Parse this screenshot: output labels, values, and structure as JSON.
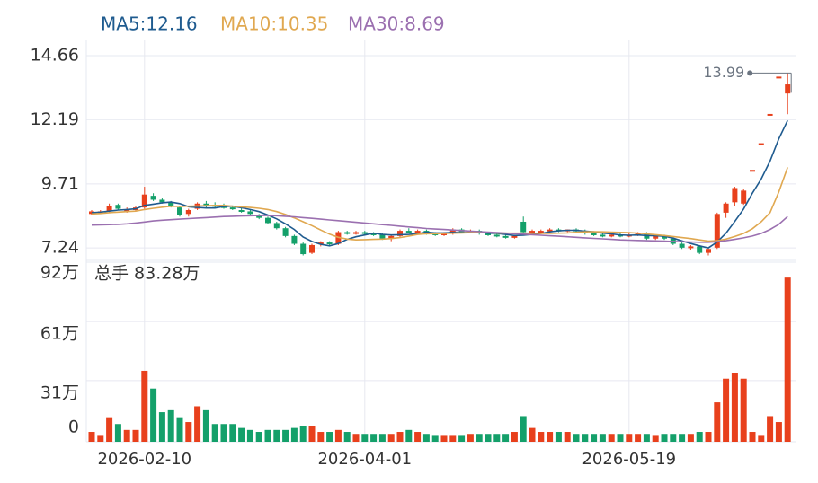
{
  "chart_data": {
    "type": "candlestick",
    "categories": [
      null,
      null,
      null,
      null,
      null,
      null,
      "2026-02-10",
      null,
      null,
      null,
      null,
      null,
      null,
      null,
      null,
      null,
      null,
      null,
      null,
      null,
      null,
      null,
      null,
      null,
      null,
      null,
      null,
      null,
      null,
      null,
      null,
      "2026-04-01",
      null,
      null,
      null,
      null,
      null,
      null,
      null,
      null,
      null,
      null,
      null,
      null,
      null,
      null,
      null,
      null,
      null,
      null,
      null,
      null,
      null,
      null,
      null,
      null,
      null,
      null,
      null,
      null,
      null,
      "2026-05-19",
      null,
      null,
      null,
      null,
      null,
      null,
      null,
      null,
      null,
      null,
      null,
      null,
      null,
      null,
      null,
      null,
      null,
      null
    ],
    "up_color": "#e8401c",
    "down_color": "#14a06a",
    "ylim": [
      6.69,
      15.25
    ],
    "yticks": [
      7.24,
      9.71,
      12.19,
      14.66
    ],
    "candles": [
      [
        8.55,
        8.7,
        8.5,
        8.65
      ],
      [
        8.6,
        8.7,
        8.55,
        8.65
      ],
      [
        8.65,
        8.95,
        8.6,
        8.85
      ],
      [
        8.9,
        8.95,
        8.7,
        8.75
      ],
      [
        8.7,
        8.8,
        8.6,
        8.7
      ],
      [
        8.7,
        8.85,
        8.65,
        8.8
      ],
      [
        8.8,
        9.6,
        8.75,
        9.3
      ],
      [
        9.25,
        9.35,
        9.05,
        9.1
      ],
      [
        9.1,
        9.15,
        8.95,
        9.0
      ],
      [
        9.0,
        9.05,
        8.8,
        8.85
      ],
      [
        8.8,
        8.85,
        8.45,
        8.5
      ],
      [
        8.55,
        8.75,
        8.45,
        8.7
      ],
      [
        8.75,
        9.0,
        8.7,
        8.95
      ],
      [
        8.95,
        9.05,
        8.8,
        8.9
      ],
      [
        8.9,
        9.0,
        8.8,
        8.85
      ],
      [
        8.85,
        8.95,
        8.75,
        8.8
      ],
      [
        8.8,
        8.85,
        8.7,
        8.75
      ],
      [
        8.7,
        8.8,
        8.6,
        8.65
      ],
      [
        8.65,
        8.7,
        8.5,
        8.55
      ],
      [
        8.5,
        8.55,
        8.35,
        8.4
      ],
      [
        8.4,
        8.45,
        8.15,
        8.2
      ],
      [
        8.2,
        8.25,
        7.95,
        8.0
      ],
      [
        8.0,
        8.05,
        7.65,
        7.7
      ],
      [
        7.7,
        7.75,
        7.35,
        7.4
      ],
      [
        7.4,
        7.45,
        6.95,
        7.0
      ],
      [
        7.05,
        7.4,
        7.0,
        7.35
      ],
      [
        7.4,
        7.5,
        7.3,
        7.45
      ],
      [
        7.45,
        7.5,
        7.35,
        7.4
      ],
      [
        7.4,
        7.9,
        7.35,
        7.85
      ],
      [
        7.85,
        7.9,
        7.75,
        7.8
      ],
      [
        7.8,
        7.9,
        7.75,
        7.85
      ],
      [
        7.85,
        7.9,
        7.75,
        7.8
      ],
      [
        7.8,
        7.85,
        7.7,
        7.75
      ],
      [
        7.75,
        7.8,
        7.55,
        7.6
      ],
      [
        7.6,
        7.75,
        7.5,
        7.7
      ],
      [
        7.7,
        7.95,
        7.65,
        7.9
      ],
      [
        7.9,
        8.0,
        7.8,
        7.85
      ],
      [
        7.85,
        7.95,
        7.8,
        7.9
      ],
      [
        7.9,
        7.95,
        7.75,
        7.8
      ],
      [
        7.8,
        7.85,
        7.7,
        7.75
      ],
      [
        7.75,
        7.85,
        7.7,
        7.8
      ],
      [
        7.8,
        8.0,
        7.75,
        7.95
      ],
      [
        7.95,
        8.0,
        7.8,
        7.85
      ],
      [
        7.85,
        7.95,
        7.8,
        7.9
      ],
      [
        7.9,
        7.95,
        7.75,
        7.8
      ],
      [
        7.8,
        7.85,
        7.7,
        7.75
      ],
      [
        7.75,
        7.8,
        7.65,
        7.7
      ],
      [
        7.7,
        7.75,
        7.6,
        7.65
      ],
      [
        7.65,
        7.75,
        7.6,
        7.7
      ],
      [
        8.25,
        8.45,
        7.8,
        7.85
      ],
      [
        7.85,
        7.95,
        7.8,
        7.9
      ],
      [
        7.9,
        7.95,
        7.85,
        7.9
      ],
      [
        7.9,
        8.0,
        7.85,
        7.95
      ],
      [
        7.95,
        8.0,
        7.85,
        7.9
      ],
      [
        7.9,
        7.95,
        7.85,
        7.95
      ],
      [
        7.95,
        8.0,
        7.85,
        7.9
      ],
      [
        7.9,
        7.95,
        7.75,
        7.8
      ],
      [
        7.8,
        7.85,
        7.7,
        7.75
      ],
      [
        7.75,
        7.8,
        7.65,
        7.7
      ],
      [
        7.7,
        7.8,
        7.65,
        7.75
      ],
      [
        7.75,
        7.8,
        7.65,
        7.7
      ],
      [
        7.7,
        7.8,
        7.65,
        7.75
      ],
      [
        7.75,
        7.85,
        7.7,
        7.8
      ],
      [
        7.8,
        7.85,
        7.55,
        7.6
      ],
      [
        7.6,
        7.75,
        7.55,
        7.7
      ],
      [
        7.7,
        7.75,
        7.55,
        7.6
      ],
      [
        7.6,
        7.65,
        7.35,
        7.4
      ],
      [
        7.4,
        7.45,
        7.2,
        7.25
      ],
      [
        7.25,
        7.35,
        7.15,
        7.3
      ],
      [
        7.3,
        7.35,
        7.0,
        7.05
      ],
      [
        7.05,
        7.25,
        6.95,
        7.2
      ],
      [
        7.25,
        8.6,
        7.2,
        8.55
      ],
      [
        8.6,
        9.0,
        8.4,
        8.95
      ],
      [
        9.0,
        9.6,
        8.85,
        9.55
      ],
      [
        8.95,
        9.5,
        8.9,
        9.45
      ],
      [
        10.25,
        10.25,
        10.25,
        10.25
      ],
      [
        11.28,
        11.28,
        11.28,
        11.28
      ],
      [
        12.41,
        12.41,
        12.41,
        12.41
      ],
      [
        13.85,
        13.85,
        13.85,
        13.85
      ],
      [
        13.2,
        13.99,
        12.4,
        13.55
      ]
    ],
    "max_label": "13.99",
    "ma_series": [
      {
        "name": "MA5",
        "legend_label": "MA5:12.16",
        "color": "#1f5b8f",
        "values": [
          8.6,
          8.62,
          8.66,
          8.7,
          8.72,
          8.75,
          8.88,
          8.93,
          8.98,
          9.01,
          8.95,
          8.83,
          8.8,
          8.78,
          8.78,
          8.84,
          8.85,
          8.79,
          8.72,
          8.64,
          8.51,
          8.36,
          8.17,
          7.95,
          7.66,
          7.49,
          7.38,
          7.32,
          7.41,
          7.57,
          7.67,
          7.74,
          7.81,
          7.76,
          7.74,
          7.75,
          7.76,
          7.79,
          7.85,
          7.82,
          7.82,
          7.84,
          7.83,
          7.84,
          7.86,
          7.81,
          7.8,
          7.76,
          7.72,
          7.73,
          7.76,
          7.8,
          7.86,
          7.9,
          7.92,
          7.92,
          7.89,
          7.86,
          7.81,
          7.78,
          7.74,
          7.73,
          7.74,
          7.72,
          7.71,
          7.69,
          7.62,
          7.51,
          7.41,
          7.32,
          7.24,
          7.47,
          7.81,
          8.26,
          8.74,
          9.35,
          9.9,
          10.59,
          11.45,
          12.16
        ]
      },
      {
        "name": "MA10",
        "legend_label": "MA10:10.35",
        "color": "#e0a850",
        "values": [
          8.55,
          8.57,
          8.6,
          8.62,
          8.64,
          8.66,
          8.72,
          8.77,
          8.81,
          8.85,
          8.84,
          8.85,
          8.86,
          8.87,
          8.88,
          8.88,
          8.85,
          8.82,
          8.8,
          8.77,
          8.72,
          8.64,
          8.53,
          8.4,
          8.25,
          8.1,
          7.93,
          7.77,
          7.65,
          7.58,
          7.55,
          7.56,
          7.57,
          7.58,
          7.6,
          7.64,
          7.7,
          7.76,
          7.79,
          7.79,
          7.8,
          7.81,
          7.82,
          7.83,
          7.84,
          7.83,
          7.82,
          7.81,
          7.81,
          7.81,
          7.81,
          7.8,
          7.8,
          7.81,
          7.82,
          7.84,
          7.86,
          7.87,
          7.86,
          7.85,
          7.84,
          7.83,
          7.81,
          7.78,
          7.75,
          7.72,
          7.68,
          7.64,
          7.6,
          7.55,
          7.5,
          7.52,
          7.58,
          7.68,
          7.8,
          7.98,
          8.25,
          8.6,
          9.4,
          10.35
        ]
      },
      {
        "name": "MA30",
        "legend_label": "MA30:8.69",
        "color": "#9b70b0",
        "values": [
          8.12,
          8.13,
          8.14,
          8.15,
          8.17,
          8.2,
          8.24,
          8.28,
          8.31,
          8.33,
          8.35,
          8.37,
          8.39,
          8.41,
          8.43,
          8.45,
          8.46,
          8.47,
          8.48,
          8.49,
          8.49,
          8.48,
          8.46,
          8.44,
          8.41,
          8.38,
          8.35,
          8.32,
          8.29,
          8.26,
          8.23,
          8.2,
          8.17,
          8.14,
          8.11,
          8.08,
          8.05,
          8.02,
          7.99,
          7.97,
          7.95,
          7.93,
          7.91,
          7.89,
          7.87,
          7.85,
          7.83,
          7.81,
          7.79,
          7.77,
          7.75,
          7.73,
          7.71,
          7.69,
          7.67,
          7.65,
          7.63,
          7.61,
          7.59,
          7.57,
          7.55,
          7.54,
          7.53,
          7.52,
          7.51,
          7.5,
          7.49,
          7.48,
          7.47,
          7.46,
          7.46,
          7.48,
          7.52,
          7.57,
          7.63,
          7.7,
          7.8,
          7.95,
          8.15,
          8.45
        ]
      }
    ],
    "volume": {
      "label": "总手 83.28万",
      "ylim": [
        0,
        92
      ],
      "yticks": [
        0,
        {
          "value": 31,
          "label": "31万"
        },
        {
          "value": 61,
          "label": "61万"
        },
        {
          "value": 92,
          "label": "92万"
        }
      ],
      "values": [
        5,
        3,
        12,
        9,
        6,
        6,
        36,
        27,
        15,
        16,
        12,
        10,
        18,
        16,
        9,
        9,
        9,
        7,
        6,
        5,
        6,
        6,
        6,
        7,
        8,
        8,
        5,
        5,
        6,
        5,
        4,
        4,
        4,
        4,
        4,
        5,
        6,
        5,
        4,
        3,
        3,
        3,
        3,
        4,
        4,
        4,
        4,
        4,
        5,
        13,
        7,
        5,
        5,
        5,
        5,
        4,
        4,
        4,
        4,
        4,
        4,
        4,
        4,
        4,
        3,
        4,
        4,
        4,
        4,
        5,
        5,
        20,
        32,
        35,
        32,
        5,
        3,
        13,
        10,
        83.28
      ]
    }
  }
}
